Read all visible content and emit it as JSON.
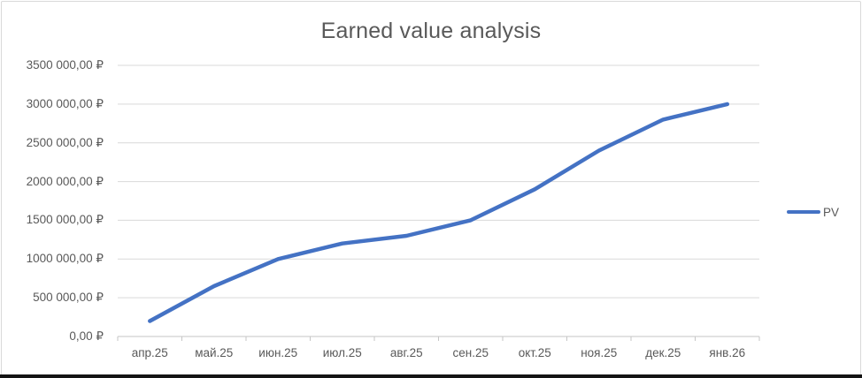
{
  "chart_data": {
    "type": "line",
    "title": "Earned value analysis",
    "categories": [
      "апр.25",
      "май.25",
      "июн.25",
      "июл.25",
      "авг.25",
      "сен.25",
      "окт.25",
      "ноя.25",
      "дек.25",
      "янв.26"
    ],
    "series": [
      {
        "name": "PV",
        "color": "#4472C4",
        "values": [
          200000,
          650000,
          1000000,
          1200000,
          1300000,
          1500000,
          1900000,
          2400000,
          2800000,
          3000000
        ]
      }
    ],
    "y_axis": {
      "min": 0,
      "max": 3500000,
      "step": 500000,
      "tick_labels": [
        "0,00 ₽",
        "500 000,00 ₽",
        "1000 000,00 ₽",
        "1500 000,00 ₽",
        "2000 000,00 ₽",
        "2500 000,00 ₽",
        "3000 000,00 ₽",
        "3500 000,00 ₽"
      ]
    },
    "legend": {
      "position": "right",
      "entries": [
        "PV"
      ]
    },
    "grid": true,
    "colors": {
      "line": "#4472C4",
      "text": "#595959",
      "gridline": "#d9d9d9",
      "axis": "#c6c6c6",
      "frame_border": "#d9d9d9",
      "bottom_rule": "#141414"
    }
  }
}
